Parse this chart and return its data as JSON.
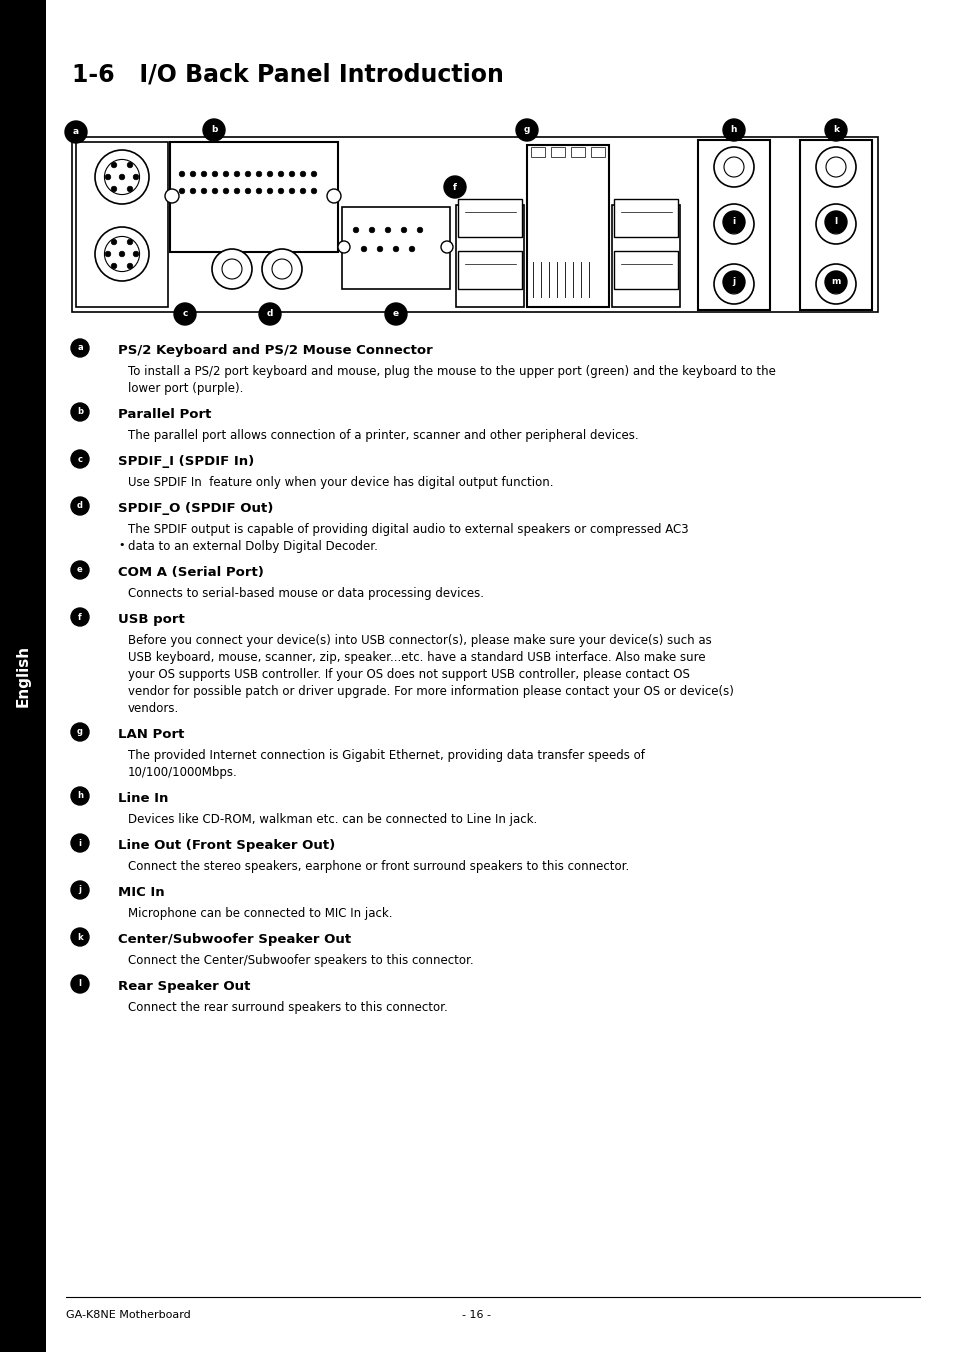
{
  "title": "1-6   I/O Back Panel Introduction",
  "bg_color": "#ffffff",
  "sidebar_color": "#000000",
  "sidebar_text": "English",
  "footer_left": "GA-K8NE Motherboard",
  "footer_right": "- 16 -",
  "entries": [
    {
      "bullet": "a",
      "heading": "PS/2 Keyboard and PS/2 Mouse Connector",
      "body": "To install a PS/2 port keyboard and mouse, plug the mouse to the upper port (green) and the keyboard to the\nlower port (purple)."
    },
    {
      "bullet": "b",
      "heading": "Parallel Port",
      "body": "The parallel port allows connection of a printer, scanner and other peripheral devices."
    },
    {
      "bullet": "c",
      "heading": "SPDIF_I (SPDIF In)",
      "body": "Use SPDIF In  feature only when your device has digital output function."
    },
    {
      "bullet": "d",
      "heading": "SPDIF_O (SPDIF Out)",
      "body": "The SPDIF output is capable of providing digital audio to external speakers or compressed AC3\ndata to an external Dolby Digital Decoder."
    },
    {
      "bullet": "e",
      "heading": "COM A (Serial Port)",
      "body": "Connects to serial-based mouse or data processing devices."
    },
    {
      "bullet": "f",
      "heading": "USB port",
      "body": "Before you connect your device(s) into USB connector(s), please make sure your device(s) such as\nUSB keyboard, mouse, scanner, zip, speaker...etc. have a standard USB interface. Also make sure\nyour OS supports USB controller. If your OS does not support USB controller, please contact OS\nvendor for possible patch or driver upgrade. For more information please contact your OS or device(s)\nvendors."
    },
    {
      "bullet": "g",
      "heading": "LAN Port",
      "body": "The provided Internet connection is Gigabit Ethernet, providing data transfer speeds of\n10/100/1000Mbps."
    },
    {
      "bullet": "h",
      "heading": "Line In",
      "body": "Devices like CD-ROM, walkman etc. can be connected to Line In jack."
    },
    {
      "bullet": "i",
      "heading": "Line Out (Front Speaker Out)",
      "body": "Connect the stereo speakers, earphone or front surround speakers to this connector."
    },
    {
      "bullet": "j",
      "heading": "MIC In",
      "body": "Microphone can be connected to MIC In jack."
    },
    {
      "bullet": "k",
      "heading": "Center/Subwoofer Speaker Out",
      "body": "Connect the Center/Subwoofer speakers to this connector."
    },
    {
      "bullet": "l",
      "heading": "Rear Speaker Out",
      "body": "Connect the rear surround speakers to this connector."
    }
  ]
}
